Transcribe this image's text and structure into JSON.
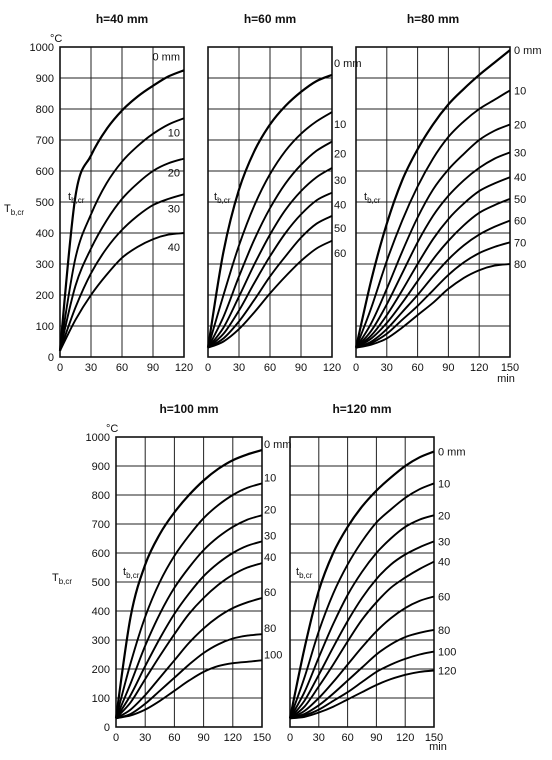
{
  "figure": {
    "unit_label": "°C",
    "ylabel": "T",
    "ylabel_sub": "b,cr",
    "xlabel": "min",
    "curve_label": "t",
    "curve_label_sub": "b,cr",
    "mm_suffix": "mm"
  },
  "chart_data": [
    {
      "type": "line",
      "title": "h=40 mm",
      "x_ticks": [
        "0",
        "30",
        "60",
        "90",
        "120"
      ],
      "y_ticks": [
        "0",
        "100",
        "200",
        "300",
        "400",
        "500",
        "600",
        "700",
        "800",
        "900",
        "1000"
      ],
      "xlim": [
        0,
        120
      ],
      "ylim": [
        0,
        1000
      ],
      "grid": true,
      "x_points": [
        0,
        15,
        30,
        45,
        60,
        75,
        90,
        105,
        120
      ],
      "series": [
        {
          "name": "0",
          "label": "0 mm",
          "values": [
            20,
            520,
            650,
            735,
            795,
            840,
            875,
            905,
            925
          ]
        },
        {
          "name": "10",
          "label": "10",
          "values": [
            20,
            320,
            460,
            560,
            630,
            680,
            720,
            750,
            770
          ]
        },
        {
          "name": "20",
          "label": "20",
          "values": [
            20,
            230,
            350,
            440,
            510,
            560,
            600,
            625,
            640
          ]
        },
        {
          "name": "30",
          "label": "30",
          "values": [
            20,
            160,
            270,
            350,
            410,
            455,
            490,
            510,
            525
          ]
        },
        {
          "name": "40",
          "label": "40",
          "values": [
            20,
            120,
            200,
            265,
            320,
            355,
            380,
            395,
            400
          ]
        }
      ]
    },
    {
      "type": "line",
      "title": "h=60 mm",
      "x_ticks": [
        "0",
        "30",
        "60",
        "90",
        "120"
      ],
      "xlim": [
        0,
        120
      ],
      "ylim": [
        0,
        1000
      ],
      "grid": true,
      "x_points": [
        0,
        15,
        30,
        45,
        60,
        75,
        90,
        105,
        120
      ],
      "series": [
        {
          "name": "0",
          "label": "0 mm",
          "values": [
            30,
            340,
            540,
            665,
            750,
            810,
            855,
            890,
            910
          ]
        },
        {
          "name": "10",
          "label": "10",
          "values": [
            30,
            200,
            360,
            490,
            590,
            665,
            720,
            760,
            790
          ]
        },
        {
          "name": "20",
          "label": "20",
          "values": [
            30,
            130,
            260,
            380,
            480,
            560,
            620,
            665,
            695
          ]
        },
        {
          "name": "30",
          "label": "30",
          "values": [
            30,
            95,
            195,
            300,
            395,
            475,
            535,
            580,
            610
          ]
        },
        {
          "name": "40",
          "label": "40",
          "values": [
            30,
            75,
            150,
            240,
            325,
            400,
            460,
            505,
            530
          ]
        },
        {
          "name": "50",
          "label": "50",
          "values": [
            30,
            60,
            115,
            185,
            260,
            325,
            385,
            430,
            455
          ]
        },
        {
          "name": "60",
          "label": "60",
          "values": [
            30,
            50,
            90,
            145,
            205,
            260,
            310,
            350,
            375
          ]
        }
      ]
    },
    {
      "type": "line",
      "title": "h=80 mm",
      "x_ticks": [
        "0",
        "30",
        "60",
        "90",
        "120",
        "150"
      ],
      "xlim": [
        0,
        150
      ],
      "ylim": [
        0,
        1000
      ],
      "grid": true,
      "x_points": [
        0,
        15,
        30,
        45,
        60,
        75,
        90,
        105,
        120,
        135,
        150
      ],
      "series": [
        {
          "name": "0",
          "label": "0 mm",
          "values": [
            30,
            250,
            430,
            570,
            670,
            750,
            815,
            865,
            910,
            950,
            990
          ]
        },
        {
          "name": "10",
          "label": "10",
          "values": [
            30,
            160,
            310,
            440,
            550,
            640,
            710,
            760,
            800,
            830,
            860
          ]
        },
        {
          "name": "20",
          "label": "20",
          "values": [
            30,
            110,
            220,
            340,
            450,
            540,
            605,
            655,
            700,
            730,
            750
          ]
        },
        {
          "name": "30",
          "label": "30",
          "values": [
            30,
            85,
            170,
            270,
            370,
            455,
            520,
            570,
            610,
            640,
            660
          ]
        },
        {
          "name": "40",
          "label": "40",
          "values": [
            30,
            70,
            135,
            215,
            300,
            380,
            445,
            495,
            535,
            560,
            580
          ]
        },
        {
          "name": "50",
          "label": "50",
          "values": [
            30,
            60,
            110,
            175,
            245,
            315,
            375,
            425,
            465,
            490,
            510
          ]
        },
        {
          "name": "60",
          "label": "60",
          "values": [
            30,
            50,
            90,
            145,
            200,
            260,
            315,
            360,
            395,
            420,
            440
          ]
        },
        {
          "name": "70",
          "label": "70",
          "values": [
            30,
            45,
            75,
            120,
            165,
            215,
            265,
            305,
            335,
            355,
            370
          ]
        },
        {
          "name": "80",
          "label": "80",
          "values": [
            30,
            40,
            60,
            95,
            135,
            175,
            220,
            255,
            280,
            295,
            300
          ]
        }
      ]
    },
    {
      "type": "line",
      "title": "h=100 mm",
      "x_ticks": [
        "0",
        "30",
        "60",
        "90",
        "120",
        "150"
      ],
      "y_ticks": [
        "0",
        "100",
        "200",
        "300",
        "400",
        "500",
        "600",
        "700",
        "800",
        "900",
        "1000"
      ],
      "xlim": [
        0,
        150
      ],
      "ylim": [
        0,
        1000
      ],
      "grid": true,
      "x_points": [
        0,
        15,
        30,
        45,
        60,
        75,
        90,
        105,
        120,
        135,
        150
      ],
      "series": [
        {
          "name": "0",
          "label": "0 mm",
          "values": [
            30,
            380,
            560,
            665,
            740,
            800,
            850,
            890,
            920,
            940,
            955
          ]
        },
        {
          "name": "10",
          "label": "10",
          "values": [
            30,
            220,
            380,
            500,
            590,
            660,
            720,
            765,
            800,
            825,
            840
          ]
        },
        {
          "name": "20",
          "label": "20",
          "values": [
            30,
            150,
            280,
            390,
            480,
            550,
            610,
            655,
            690,
            715,
            730
          ]
        },
        {
          "name": "30",
          "label": "30",
          "values": [
            30,
            110,
            210,
            305,
            390,
            460,
            520,
            565,
            600,
            625,
            640
          ]
        },
        {
          "name": "40",
          "label": "40",
          "values": [
            30,
            85,
            165,
            245,
            320,
            390,
            445,
            490,
            525,
            550,
            565
          ]
        },
        {
          "name": "60",
          "label": "60",
          "values": [
            30,
            60,
            110,
            170,
            230,
            290,
            340,
            380,
            410,
            430,
            445
          ]
        },
        {
          "name": "80",
          "label": "80",
          "values": [
            30,
            45,
            80,
            125,
            170,
            215,
            255,
            285,
            305,
            315,
            320
          ]
        },
        {
          "name": "100",
          "label": "100",
          "values": [
            30,
            40,
            60,
            90,
            125,
            160,
            190,
            210,
            220,
            225,
            230
          ]
        }
      ]
    },
    {
      "type": "line",
      "title": "h=120 mm",
      "x_ticks": [
        "0",
        "30",
        "60",
        "90",
        "120",
        "150"
      ],
      "xlim": [
        0,
        150
      ],
      "ylim": [
        0,
        1000
      ],
      "grid": true,
      "x_points": [
        0,
        15,
        30,
        45,
        60,
        75,
        90,
        105,
        120,
        135,
        150
      ],
      "series": [
        {
          "name": "0",
          "label": "0 mm",
          "values": [
            30,
            270,
            470,
            600,
            690,
            760,
            815,
            860,
            900,
            930,
            950
          ]
        },
        {
          "name": "10",
          "label": "10",
          "values": [
            30,
            170,
            330,
            460,
            560,
            640,
            705,
            750,
            790,
            820,
            840
          ]
        },
        {
          "name": "20",
          "label": "20",
          "values": [
            30,
            120,
            240,
            355,
            455,
            535,
            600,
            650,
            690,
            715,
            730
          ]
        },
        {
          "name": "30",
          "label": "30",
          "values": [
            30,
            90,
            180,
            275,
            365,
            445,
            510,
            560,
            595,
            620,
            640
          ]
        },
        {
          "name": "40",
          "label": "40",
          "values": [
            30,
            70,
            140,
            215,
            295,
            370,
            430,
            480,
            515,
            545,
            570
          ]
        },
        {
          "name": "60",
          "label": "60",
          "values": [
            30,
            55,
            100,
            155,
            215,
            275,
            330,
            375,
            410,
            435,
            450
          ]
        },
        {
          "name": "80",
          "label": "80",
          "values": [
            30,
            45,
            75,
            115,
            160,
            205,
            250,
            285,
            310,
            325,
            335
          ]
        },
        {
          "name": "100",
          "label": "100",
          "values": [
            30,
            40,
            60,
            90,
            120,
            155,
            190,
            215,
            235,
            250,
            260
          ]
        },
        {
          "name": "120",
          "label": "120",
          "values": [
            30,
            35,
            50,
            70,
            95,
            120,
            145,
            165,
            180,
            190,
            195
          ]
        }
      ]
    }
  ]
}
